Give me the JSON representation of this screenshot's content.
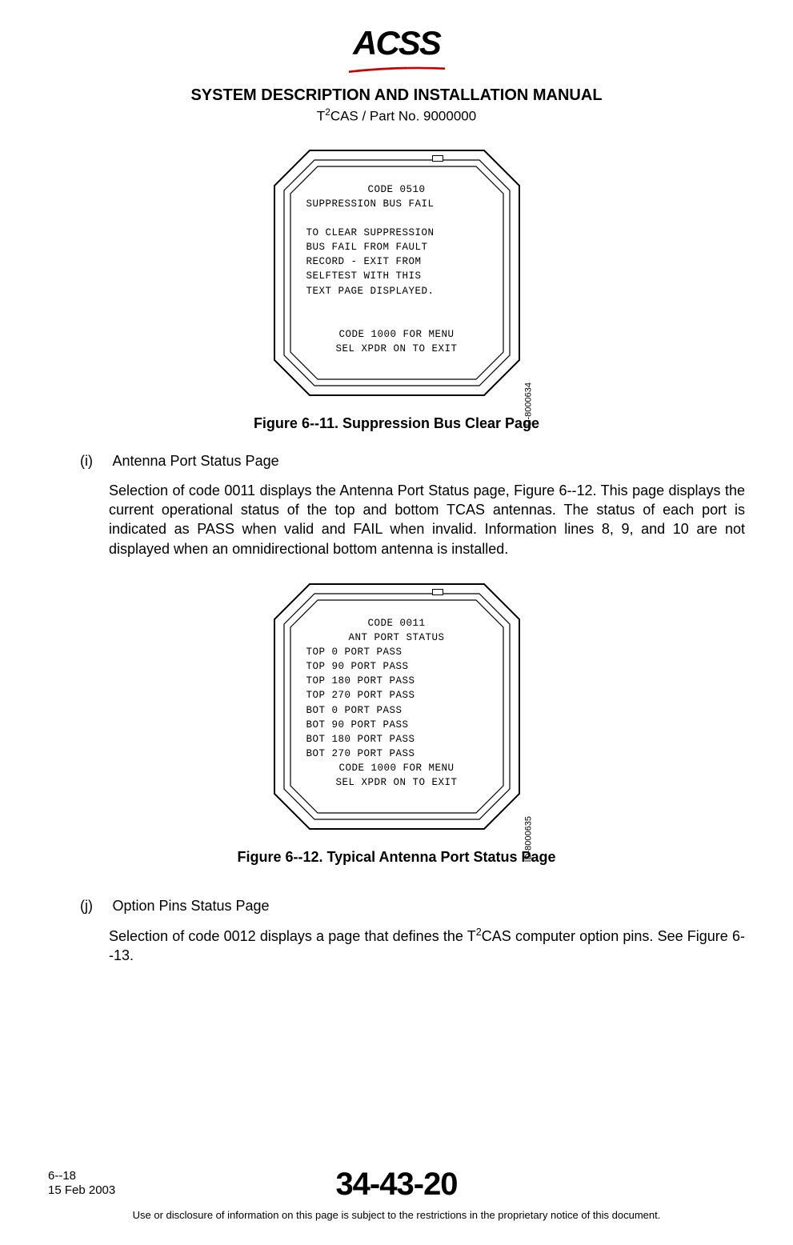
{
  "header": {
    "logo_text": "ACSS",
    "manual_title": "SYSTEM DESCRIPTION AND INSTALLATION MANUAL",
    "part_prefix": "T",
    "part_sup": "2",
    "part_rest": "CAS / Part No. 9000000"
  },
  "figure1": {
    "id_label": "ID-8000634",
    "lines": [
      {
        "t": "CODE 0510",
        "c": true
      },
      {
        "t": "SUPPRESSION BUS FAIL",
        "c": false
      },
      {
        "t": "",
        "c": false
      },
      {
        "t": "TO CLEAR SUPPRESSION",
        "c": false
      },
      {
        "t": "BUS FAIL FROM FAULT",
        "c": false
      },
      {
        "t": "RECORD - EXIT FROM",
        "c": false
      },
      {
        "t": "SELFTEST WITH THIS",
        "c": false
      },
      {
        "t": "TEXT PAGE DISPLAYED.",
        "c": false
      },
      {
        "t": "",
        "c": false
      },
      {
        "t": "",
        "c": false
      },
      {
        "t": "CODE 1000 FOR MENU",
        "c": true
      },
      {
        "t": "SEL XPDR ON TO EXIT",
        "c": true
      }
    ],
    "caption": "Figure 6--11.  Suppression Bus Clear Page"
  },
  "section_i": {
    "label": "(i)",
    "title": "Antenna Port Status Page",
    "body": "Selection of code 0011 displays the Antenna Port Status page, Figure 6--12. This page displays the current operational status of the top and bottom TCAS antennas.  The status of each port is indicated as PASS when valid and FAIL when invalid.  Information lines 8, 9, and 10 are not displayed when an omnidirectional bottom antenna is installed."
  },
  "figure2": {
    "id_label": "ID-8000635",
    "lines": [
      {
        "t": "CODE 0011",
        "c": true
      },
      {
        "t": "ANT PORT STATUS",
        "c": true
      },
      {
        "t": "TOP   0 PORT    PASS",
        "c": false
      },
      {
        "t": "TOP  90 PORT    PASS",
        "c": false
      },
      {
        "t": "TOP 180 PORT    PASS",
        "c": false
      },
      {
        "t": "TOP 270 PORT    PASS",
        "c": false
      },
      {
        "t": "BOT   0 PORT    PASS",
        "c": false
      },
      {
        "t": "BOT  90 PORT    PASS",
        "c": false
      },
      {
        "t": "BOT 180 PORT    PASS",
        "c": false
      },
      {
        "t": "BOT 270 PORT    PASS",
        "c": false
      },
      {
        "t": "CODE 1000 FOR MENU",
        "c": true
      },
      {
        "t": "SEL XPDR ON TO EXIT",
        "c": true
      }
    ],
    "caption": "Figure 6--12.  Typical Antenna Port Status Page"
  },
  "section_j": {
    "label": "(j)",
    "title": "Option Pins Status Page",
    "body_pre": "Selection of code 0012 displays a page that defines the T",
    "body_sup": "2",
    "body_post": "CAS computer option pins.  See Figure 6--13."
  },
  "footer": {
    "page": "6--18",
    "date": "15 Feb 2003",
    "doc_no": "34-43-20",
    "notice": "Use or disclosure of information on this page is subject to the restrictions in the proprietary notice of this document."
  },
  "style": {
    "octagon_stroke": "#000000",
    "octagon_fill": "#ffffff"
  }
}
